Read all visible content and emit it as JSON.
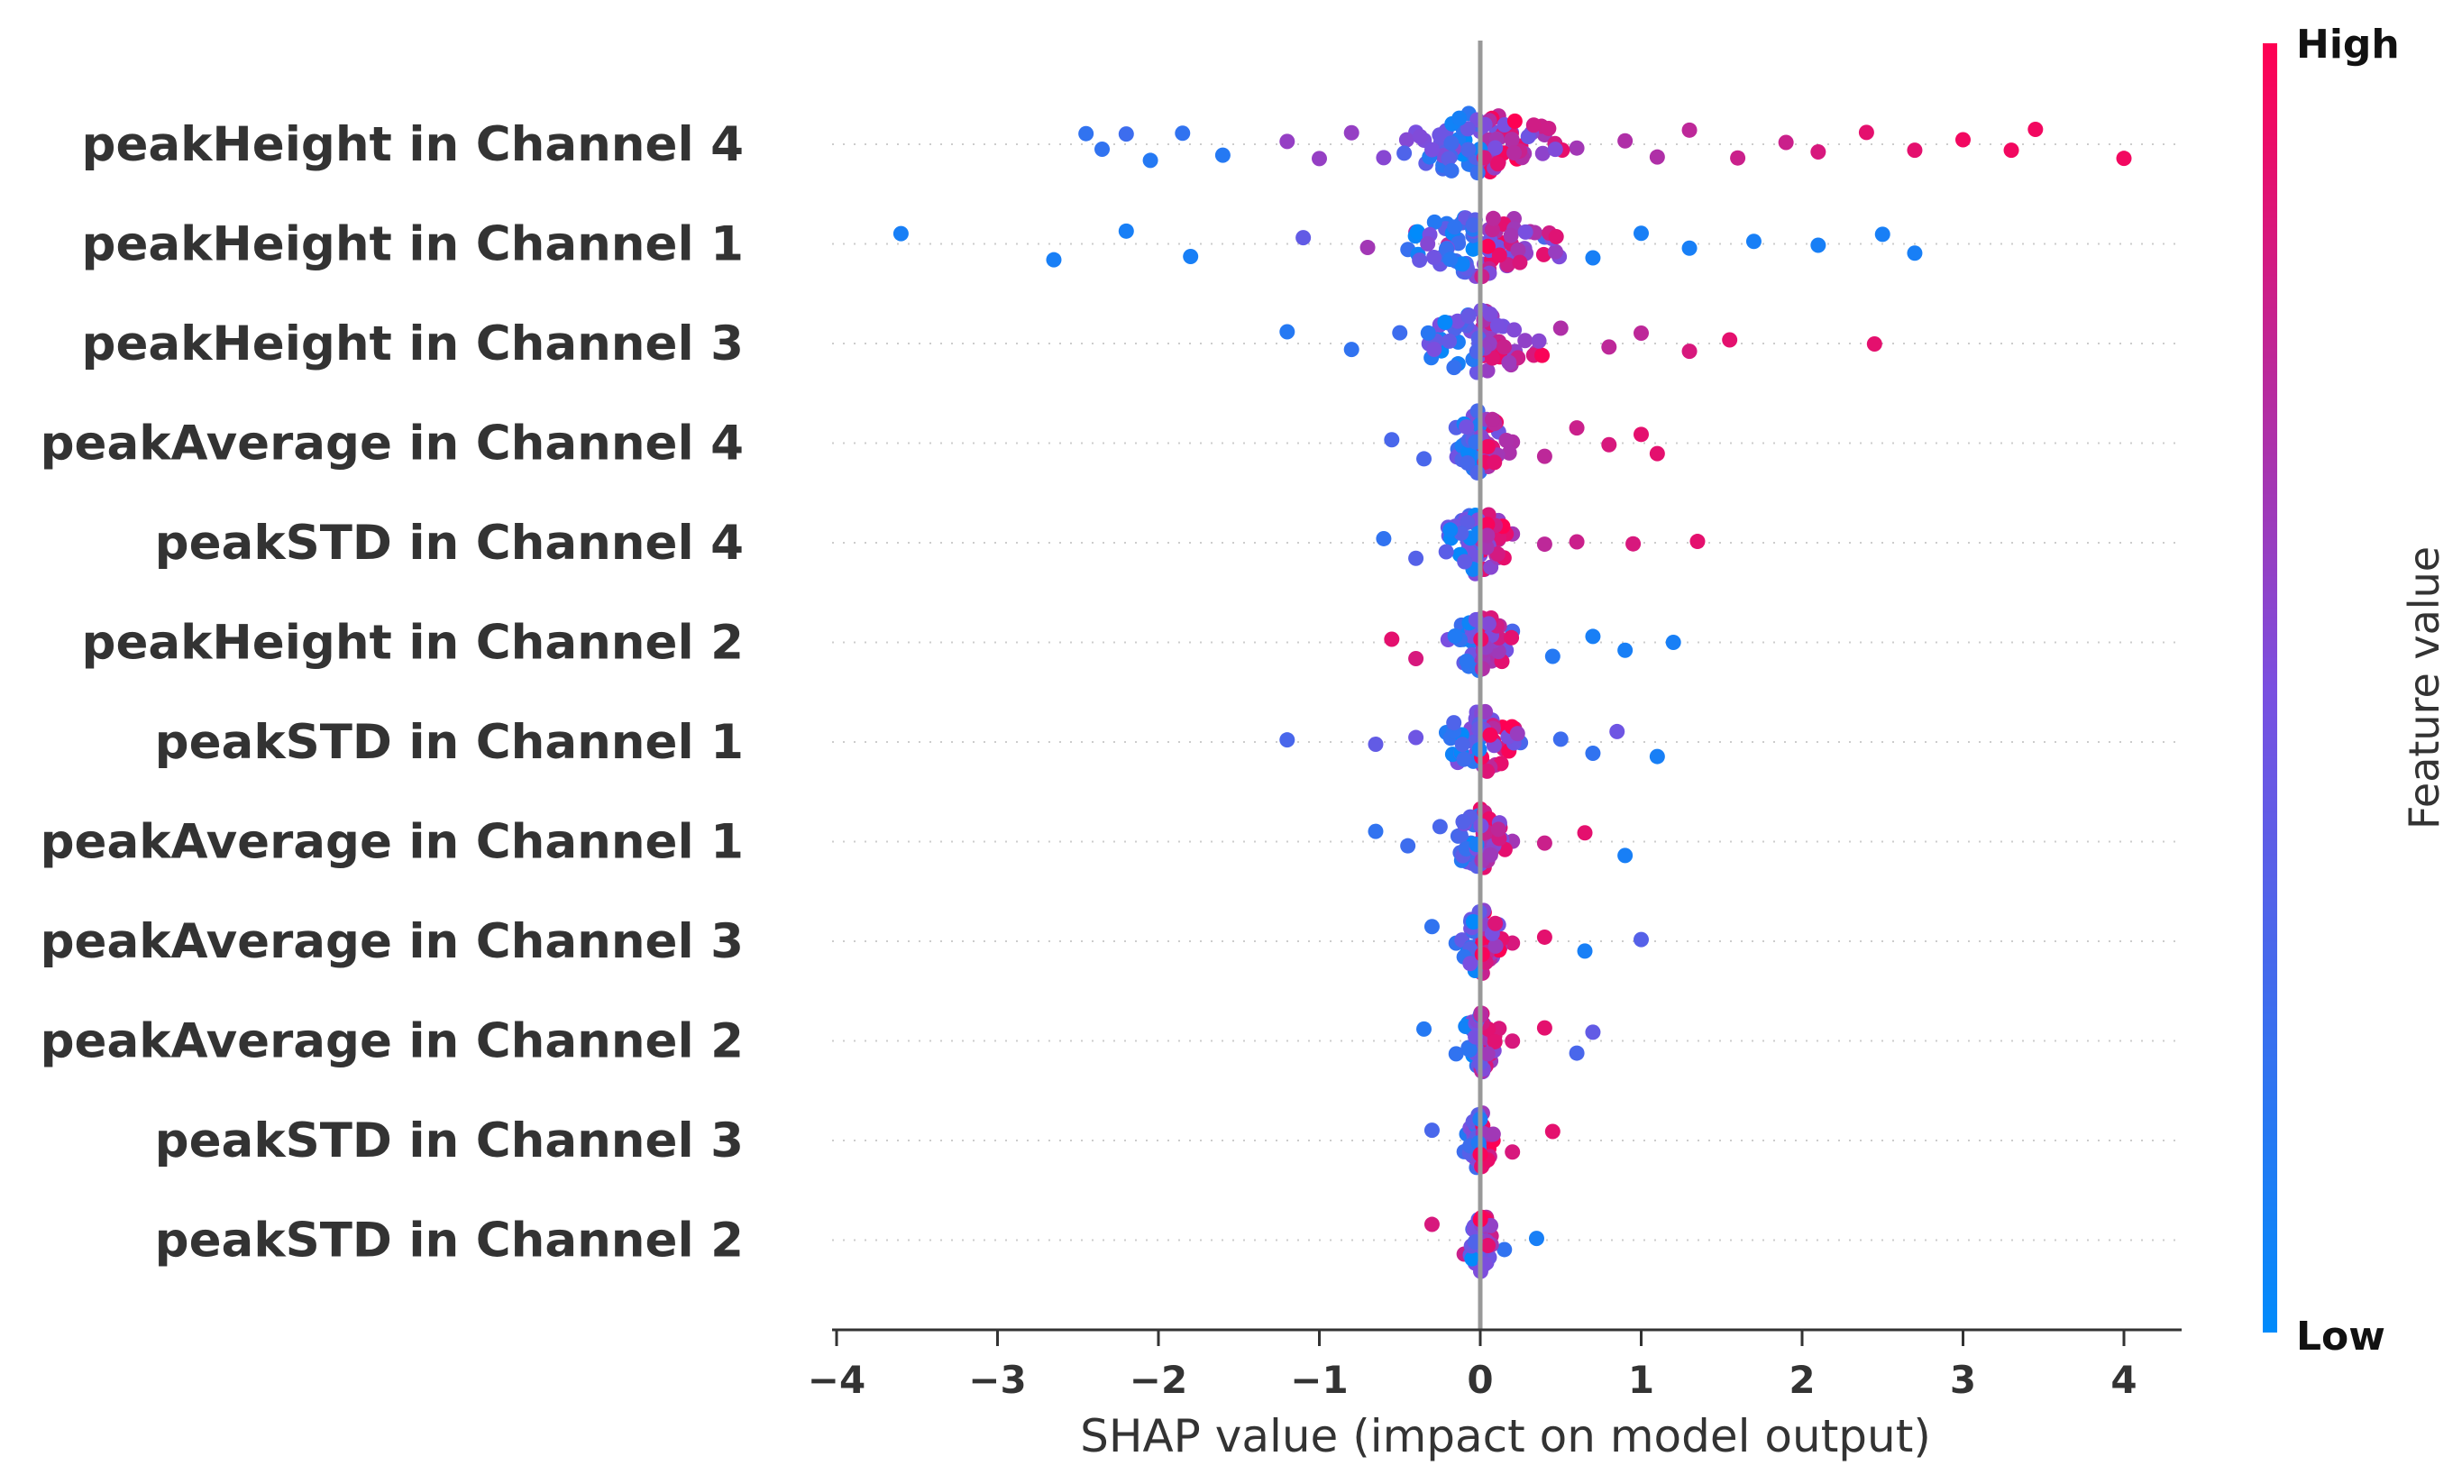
{
  "chart_data": {
    "type": "scatter",
    "subtype": "shap-beeswarm",
    "xlabel": "SHAP value (impact on model output)",
    "xlim": [
      -4.0,
      4.4
    ],
    "xticks": [
      -4,
      -3,
      -2,
      -1,
      0,
      1,
      2,
      3,
      4
    ],
    "xtick_labels": [
      "−4",
      "−3",
      "−2",
      "−1",
      "0",
      "1",
      "2",
      "3",
      "4"
    ],
    "zero_line": true,
    "grid": false,
    "colorbar": {
      "title": "Feature value",
      "high_label": "High",
      "low_label": "Low",
      "low_color": "#008bfb",
      "high_color": "#ff0052"
    },
    "features": [
      {
        "name": "peakHeight in Channel 4",
        "min": -2.5,
        "max": 4.0,
        "points": [
          [
            -2.45,
            0.2
          ],
          [
            -2.35,
            0.2
          ],
          [
            -2.2,
            0.25
          ],
          [
            -2.05,
            0.15
          ],
          [
            -1.85,
            0.2
          ],
          [
            -1.6,
            0.15
          ],
          [
            -1.2,
            0.6
          ],
          [
            -1.0,
            0.6
          ],
          [
            -0.8,
            0.6
          ],
          [
            -0.6,
            0.55
          ],
          [
            -0.4,
            0.5
          ],
          [
            -0.2,
            0.55
          ],
          [
            0.0,
            0.5
          ],
          [
            0.2,
            0.6
          ],
          [
            0.4,
            0.65
          ],
          [
            0.6,
            0.65
          ],
          [
            0.9,
            0.7
          ],
          [
            1.1,
            0.7
          ],
          [
            1.3,
            0.75
          ],
          [
            1.6,
            0.8
          ],
          [
            1.9,
            0.8
          ],
          [
            2.1,
            0.85
          ],
          [
            2.4,
            0.9
          ],
          [
            2.7,
            0.9
          ],
          [
            3.0,
            0.95
          ],
          [
            3.3,
            0.95
          ],
          [
            3.45,
            0.95
          ],
          [
            4.0,
            0.95
          ]
        ]
      },
      {
        "name": "peakHeight in Channel 1",
        "min": -3.6,
        "max": 2.7,
        "points": [
          [
            -3.6,
            0.1
          ],
          [
            -2.65,
            0.1
          ],
          [
            -2.2,
            0.1
          ],
          [
            -1.8,
            0.1
          ],
          [
            -1.1,
            0.4
          ],
          [
            -0.7,
            0.65
          ],
          [
            -0.4,
            0.7
          ],
          [
            -0.2,
            0.75
          ],
          [
            0.0,
            0.55
          ],
          [
            0.2,
            0.55
          ],
          [
            0.4,
            0.3
          ],
          [
            0.7,
            0.1
          ],
          [
            1.0,
            0.1
          ],
          [
            1.3,
            0.1
          ],
          [
            1.7,
            0.1
          ],
          [
            2.1,
            0.1
          ],
          [
            2.5,
            0.1
          ],
          [
            2.7,
            0.1
          ]
        ]
      },
      {
        "name": "peakHeight in Channel 3",
        "min": -1.2,
        "max": 2.45,
        "points": [
          [
            -1.2,
            0.15
          ],
          [
            -0.8,
            0.2
          ],
          [
            -0.5,
            0.25
          ],
          [
            -0.25,
            0.35
          ],
          [
            0.0,
            0.4
          ],
          [
            0.2,
            0.55
          ],
          [
            0.5,
            0.7
          ],
          [
            0.8,
            0.75
          ],
          [
            1.0,
            0.75
          ],
          [
            1.3,
            0.85
          ],
          [
            1.55,
            0.9
          ],
          [
            2.45,
            0.9
          ]
        ]
      },
      {
        "name": "peakAverage in Channel 4",
        "min": -0.55,
        "max": 1.1,
        "points": [
          [
            -0.55,
            0.3
          ],
          [
            -0.35,
            0.3
          ],
          [
            -0.15,
            0.35
          ],
          [
            0.0,
            0.4
          ],
          [
            0.2,
            0.7
          ],
          [
            0.4,
            0.75
          ],
          [
            0.6,
            0.8
          ],
          [
            0.8,
            0.85
          ],
          [
            1.0,
            0.9
          ],
          [
            1.1,
            0.9
          ]
        ]
      },
      {
        "name": "peakSTD in Channel 4",
        "min": -0.6,
        "max": 1.35,
        "points": [
          [
            -0.6,
            0.2
          ],
          [
            -0.4,
            0.35
          ],
          [
            -0.2,
            0.45
          ],
          [
            0.0,
            0.5
          ],
          [
            0.2,
            0.65
          ],
          [
            0.4,
            0.75
          ],
          [
            0.6,
            0.8
          ],
          [
            0.95,
            0.85
          ],
          [
            1.35,
            0.9
          ]
        ]
      },
      {
        "name": "peakHeight in Channel 2",
        "min": -0.6,
        "max": 1.2,
        "points": [
          [
            -0.55,
            0.9
          ],
          [
            -0.4,
            0.85
          ],
          [
            -0.2,
            0.5
          ],
          [
            0.0,
            0.4
          ],
          [
            0.2,
            0.3
          ],
          [
            0.45,
            0.15
          ],
          [
            0.7,
            0.1
          ],
          [
            0.9,
            0.1
          ],
          [
            1.2,
            0.1
          ]
        ]
      },
      {
        "name": "peakSTD in Channel 1",
        "min": -1.2,
        "max": 1.1,
        "points": [
          [
            -1.2,
            0.3
          ],
          [
            -0.65,
            0.4
          ],
          [
            -0.4,
            0.45
          ],
          [
            -0.15,
            0.55
          ],
          [
            0.0,
            0.6
          ],
          [
            0.25,
            0.3
          ],
          [
            0.5,
            0.25
          ],
          [
            0.7,
            0.2
          ],
          [
            0.85,
            0.45
          ],
          [
            1.1,
            0.1
          ]
        ]
      },
      {
        "name": "peakAverage in Channel 1",
        "min": -0.65,
        "max": 0.9,
        "points": [
          [
            -0.65,
            0.2
          ],
          [
            -0.45,
            0.25
          ],
          [
            -0.25,
            0.3
          ],
          [
            0.0,
            0.5
          ],
          [
            0.2,
            0.65
          ],
          [
            0.4,
            0.8
          ],
          [
            0.65,
            0.9
          ],
          [
            0.9,
            0.1
          ]
        ]
      },
      {
        "name": "peakAverage in Channel 3",
        "min": -0.3,
        "max": 1.0,
        "points": [
          [
            -0.3,
            0.2
          ],
          [
            -0.15,
            0.2
          ],
          [
            0.0,
            0.3
          ],
          [
            0.2,
            0.85
          ],
          [
            0.4,
            0.9
          ],
          [
            0.65,
            0.1
          ],
          [
            1.0,
            0.35
          ]
        ]
      },
      {
        "name": "peakAverage in Channel 2",
        "min": -0.35,
        "max": 0.7,
        "points": [
          [
            -0.35,
            0.15
          ],
          [
            -0.15,
            0.2
          ],
          [
            0.0,
            0.4
          ],
          [
            0.2,
            0.85
          ],
          [
            0.4,
            0.9
          ],
          [
            0.6,
            0.3
          ],
          [
            0.7,
            0.4
          ]
        ]
      },
      {
        "name": "peakSTD in Channel 3",
        "min": -0.3,
        "max": 0.45,
        "points": [
          [
            -0.3,
            0.3
          ],
          [
            -0.1,
            0.25
          ],
          [
            0.0,
            0.5
          ],
          [
            0.2,
            0.85
          ],
          [
            0.45,
            0.9
          ]
        ]
      },
      {
        "name": "peakSTD in Channel 2",
        "min": -0.3,
        "max": 0.35,
        "points": [
          [
            -0.3,
            0.85
          ],
          [
            -0.1,
            0.8
          ],
          [
            0.0,
            0.6
          ],
          [
            0.15,
            0.2
          ],
          [
            0.35,
            0.1
          ]
        ]
      }
    ]
  }
}
